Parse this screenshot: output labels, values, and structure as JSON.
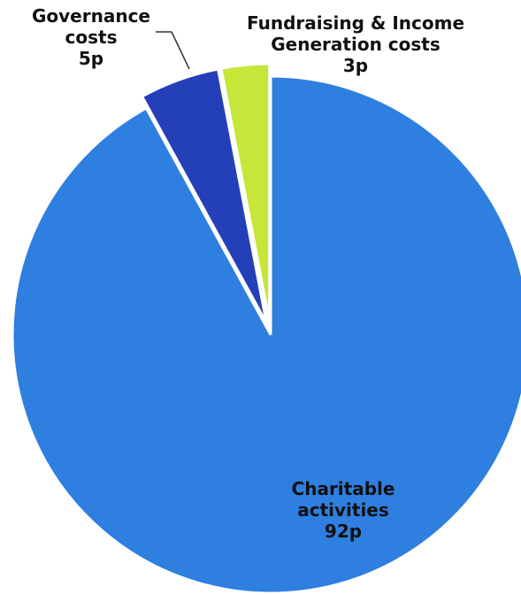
{
  "chart_data": {
    "type": "pie",
    "title": "",
    "slices": [
      {
        "name": "Charitable activities",
        "label_lines": [
          "Charitable",
          "activities",
          "92p"
        ],
        "value": 92,
        "unit": "p",
        "color": "#2E7FE0",
        "exploded": false
      },
      {
        "name": "Governance costs",
        "label_lines": [
          "Governance",
          "costs",
          "5p"
        ],
        "value": 5,
        "unit": "p",
        "color": "#2440B8",
        "exploded": true
      },
      {
        "name": "Fundraising & Income Generation costs",
        "label_lines": [
          "Fundraising & Income",
          "Generation costs",
          "3p"
        ],
        "value": 3,
        "unit": "p",
        "color": "#C6E63A",
        "exploded": true
      }
    ],
    "legend": "none",
    "start_angle": "12 o'clock",
    "direction": "clockwise"
  }
}
